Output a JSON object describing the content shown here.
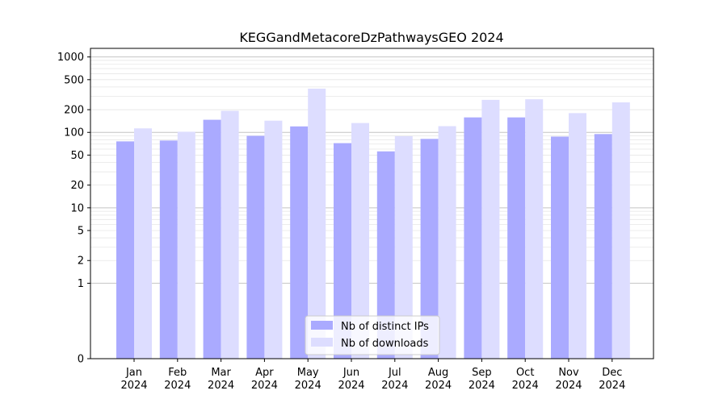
{
  "chart_data": {
    "type": "bar",
    "title": "KEGGandMetacoreDzPathwaysGEO 2024",
    "xlabel": "",
    "ylabel": "",
    "yscale": "symlog",
    "ylim": [
      0,
      1300
    ],
    "yticks": [
      0,
      1,
      2,
      5,
      10,
      20,
      50,
      100,
      200,
      500,
      1000
    ],
    "categories": [
      "Jan\n2024",
      "Feb\n2024",
      "Mar\n2024",
      "Apr\n2024",
      "May\n2024",
      "Jun\n2024",
      "Jul\n2024",
      "Aug\n2024",
      "Sep\n2024",
      "Oct\n2024",
      "Nov\n2024",
      "Dec\n2024"
    ],
    "series": [
      {
        "name": "Nb of distinct IPs",
        "color": "#aaaaff",
        "values": [
          76,
          78,
          147,
          90,
          120,
          72,
          56,
          82,
          158,
          158,
          88,
          95
        ]
      },
      {
        "name": "Nb of downloads",
        "color": "#ddddff",
        "values": [
          113,
          102,
          193,
          143,
          380,
          133,
          89,
          121,
          270,
          275,
          180,
          250
        ]
      }
    ],
    "grid": true,
    "legend": "bottom-center"
  }
}
